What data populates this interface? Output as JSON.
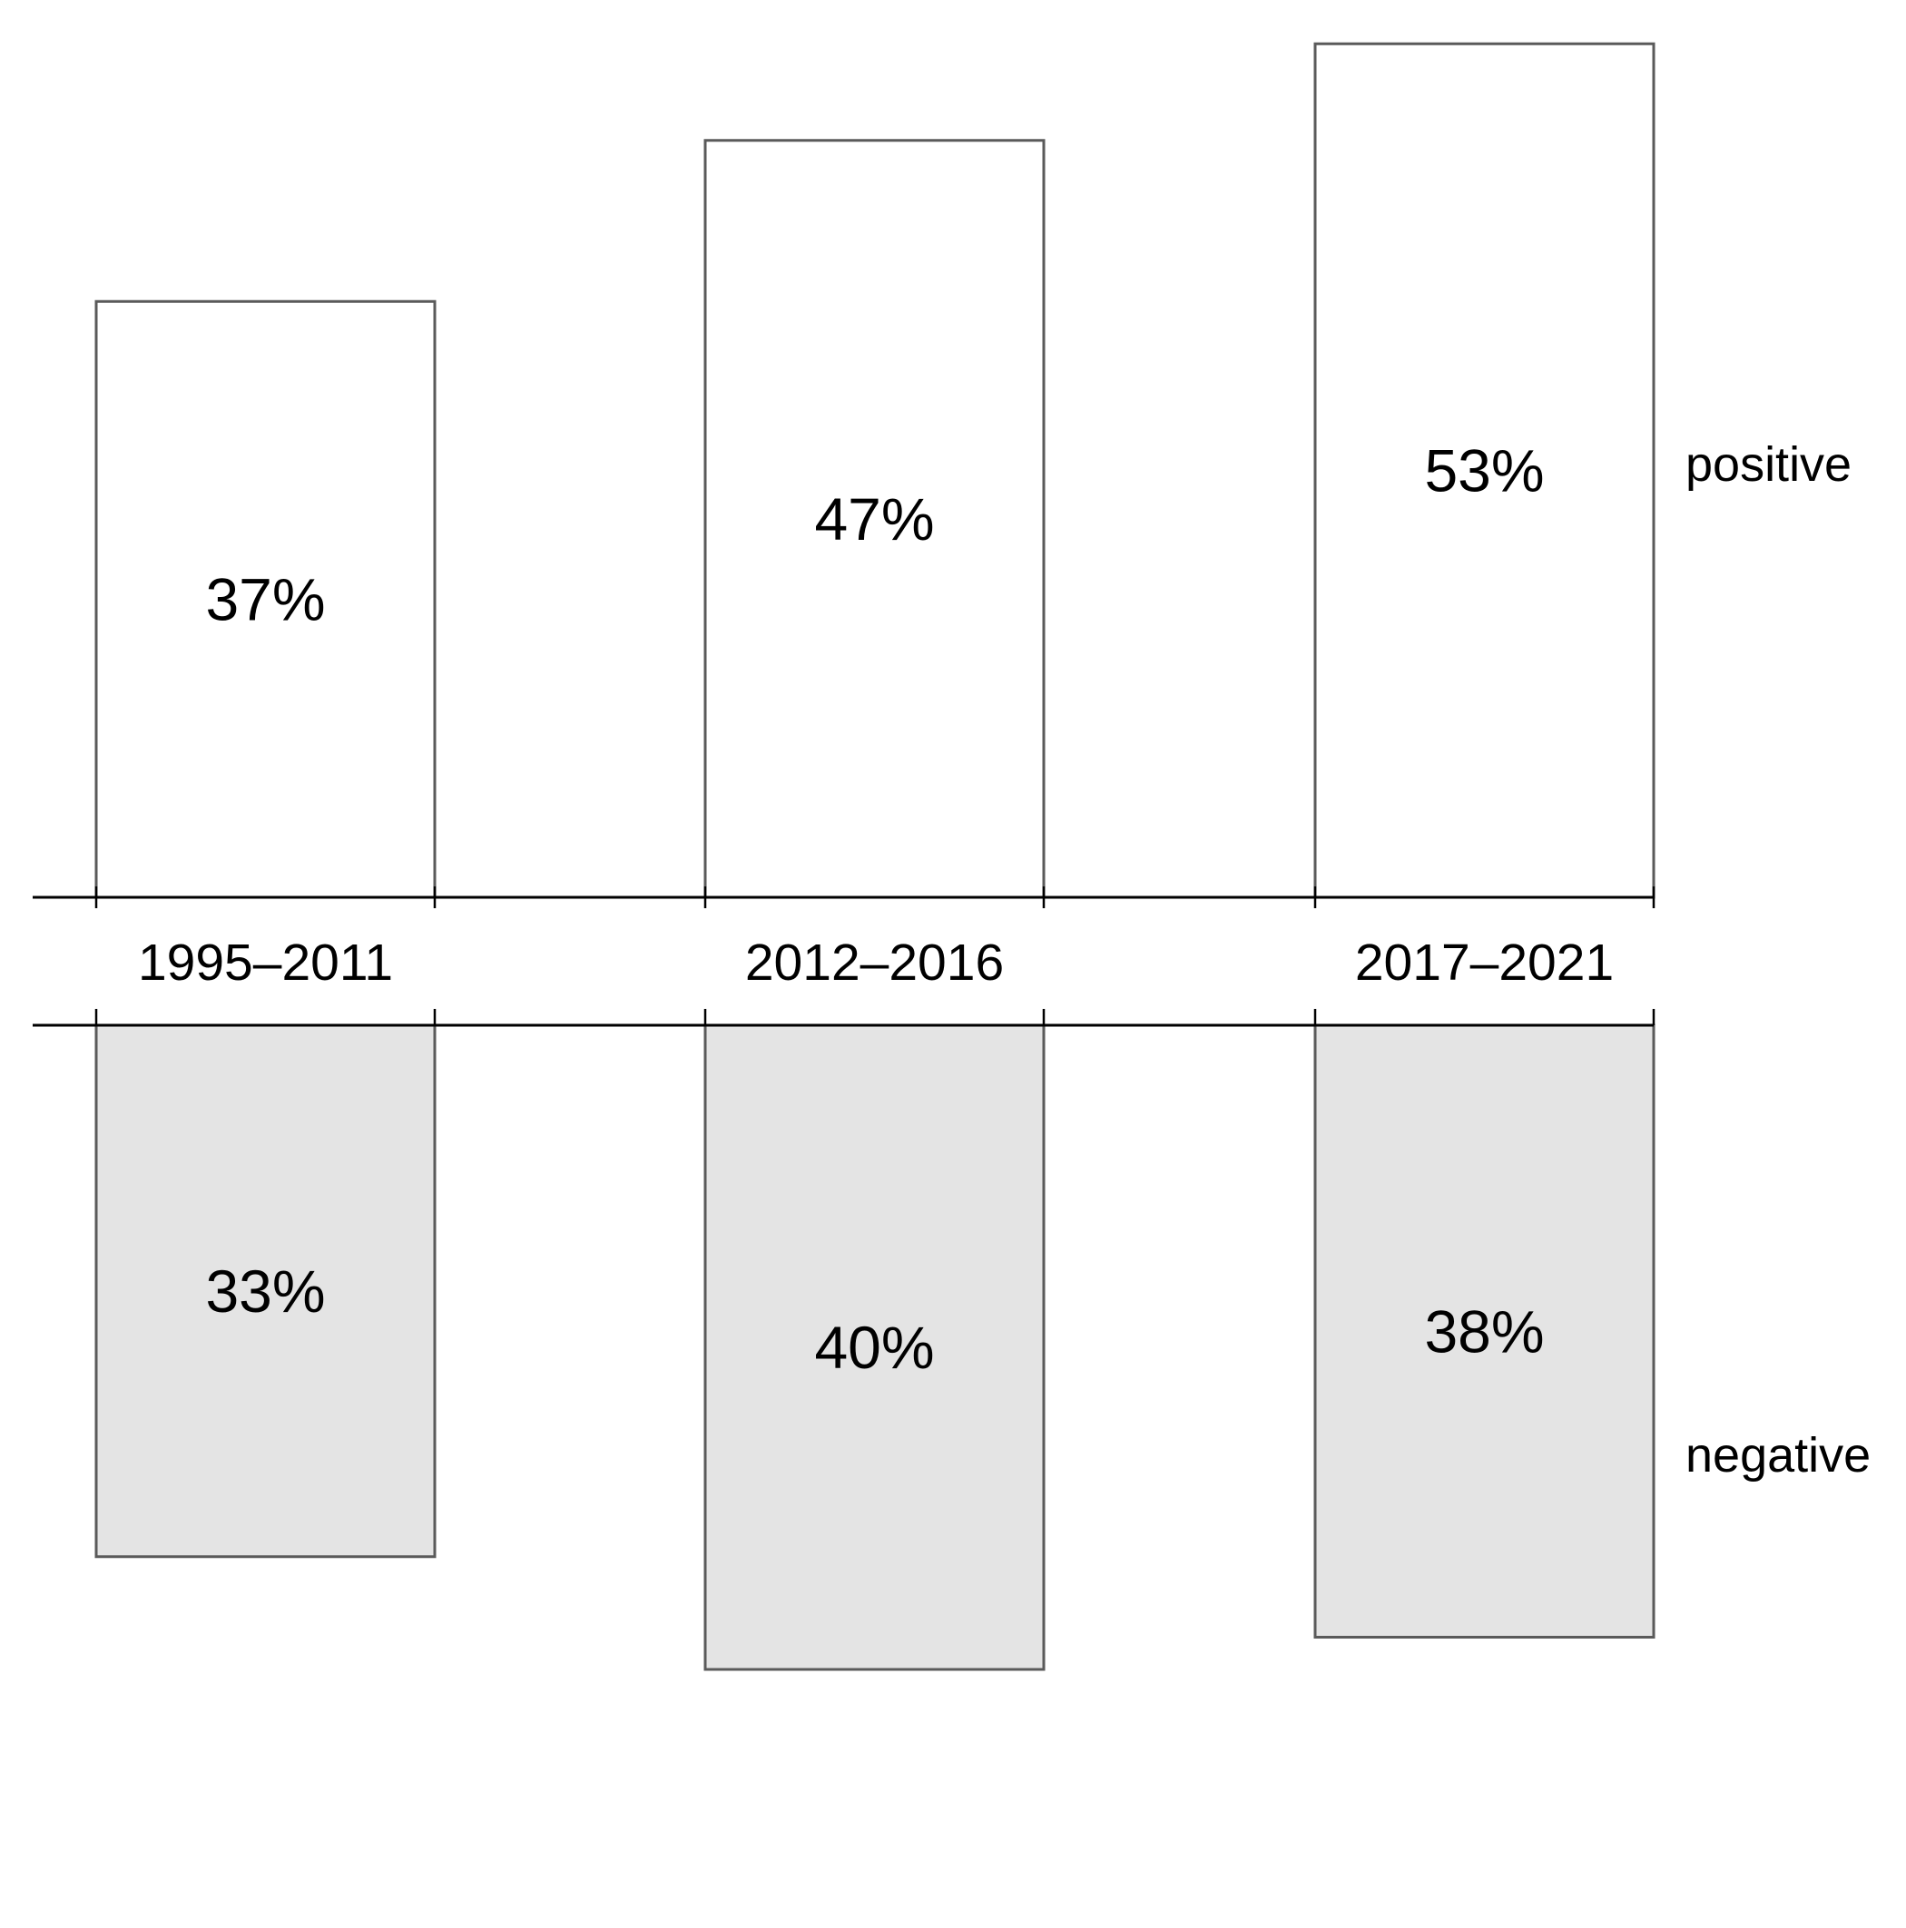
{
  "colors": {
    "positive_fill": "#ffffff",
    "negative_fill": "#e4e4e4",
    "bar_stroke": "#5a5a5a",
    "axis": "#000000"
  },
  "chart_data": {
    "type": "bar",
    "categories": [
      "1995–2011",
      "2012–2016",
      "2017–2021"
    ],
    "series": [
      {
        "name": "positive",
        "values": [
          37,
          47,
          53
        ],
        "labels": [
          "37%",
          "47%",
          "53%"
        ]
      },
      {
        "name": "negative",
        "values": [
          33,
          40,
          38
        ],
        "labels": [
          "33%",
          "40%",
          "38%"
        ]
      }
    ],
    "title": "",
    "xlabel": "",
    "ylabel": "",
    "ylim": [
      0,
      55
    ],
    "grid": false,
    "legend": "none"
  }
}
